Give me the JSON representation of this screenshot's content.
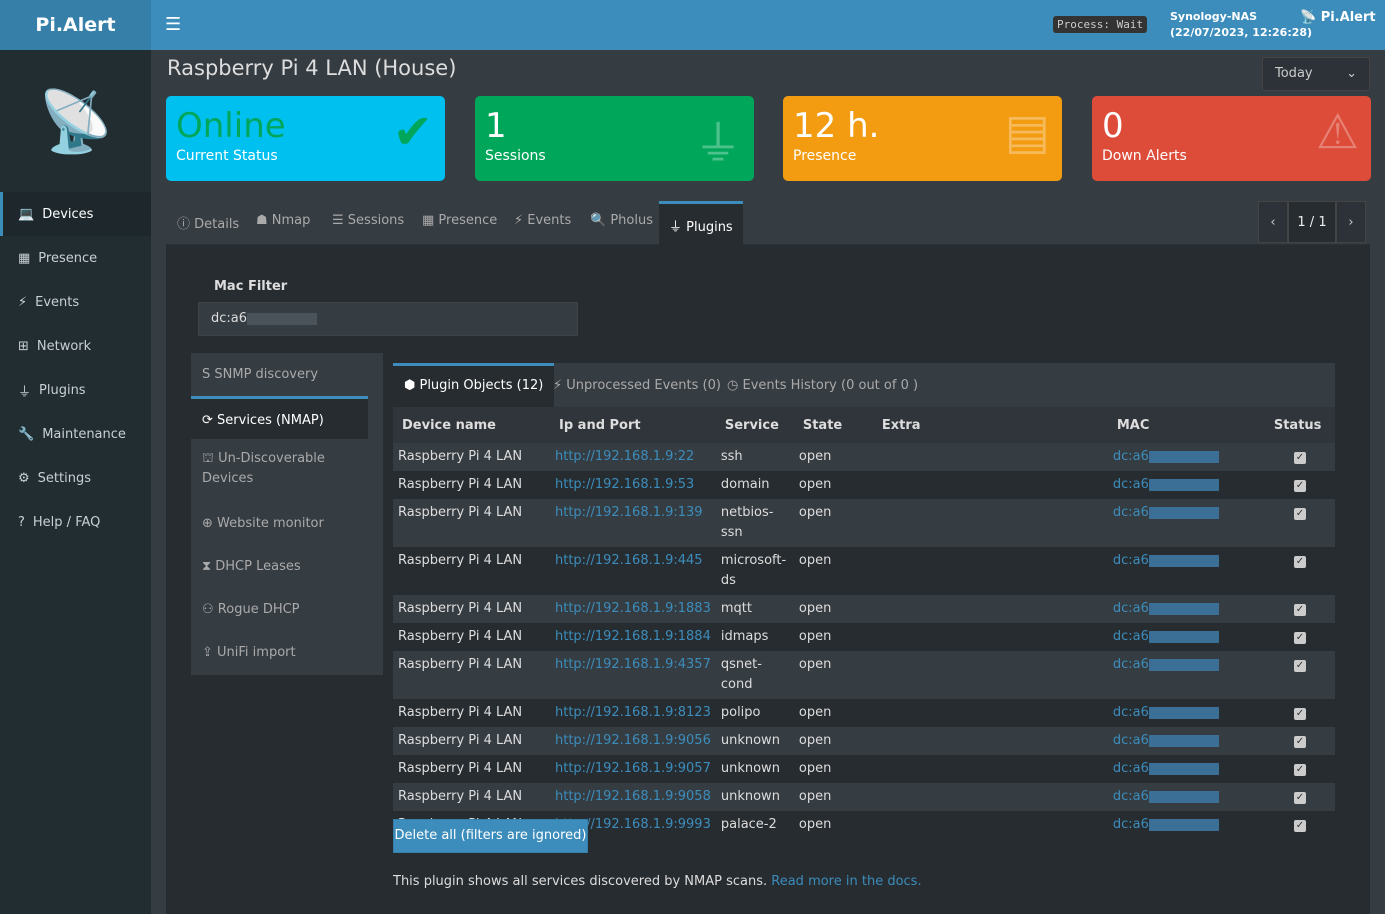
{
  "app": {
    "logo": "Pi.Alert",
    "process": "Process: Wait",
    "host": "Synology-NAS",
    "datetime": "(22/07/2023, 12:26:28)",
    "user": "Pi.Alert"
  },
  "sidebar": {
    "items": [
      {
        "label": "Devices",
        "icon": "laptop-icon"
      },
      {
        "label": "Presence",
        "icon": "calendar-icon"
      },
      {
        "label": "Events",
        "icon": "bolt-icon"
      },
      {
        "label": "Network",
        "icon": "network-icon"
      },
      {
        "label": "Plugins",
        "icon": "plug-icon"
      },
      {
        "label": "Maintenance",
        "icon": "wrench-icon"
      },
      {
        "label": "Settings",
        "icon": "gear-icon"
      },
      {
        "label": "Help / FAQ",
        "icon": "question-icon"
      }
    ]
  },
  "page": {
    "title": "Raspberry Pi 4 LAN (House)",
    "period": "Today"
  },
  "cards": [
    {
      "value": "Online",
      "label": "Current Status",
      "color": "#00c0ef"
    },
    {
      "value": "1",
      "label": "Sessions",
      "color": "#00a65a"
    },
    {
      "value": "12 h.",
      "label": "Presence",
      "color": "#f39c12"
    },
    {
      "value": "0",
      "label": "Down Alerts",
      "color": "#dd4b39"
    }
  ],
  "tabs": [
    "Details",
    "Nmap",
    "Sessions",
    "Presence",
    "Events",
    "Pholus",
    "Plugins"
  ],
  "pager": "1 / 1",
  "mac_filter": {
    "label": "Mac Filter",
    "value": "dc:a6"
  },
  "plugins": [
    "SNMP discovery",
    "Services (NMAP)",
    "Un-Discoverable Devices",
    "Website monitor",
    "DHCP Leases",
    "Rogue DHCP",
    "UniFi import"
  ],
  "subtabs": [
    "Plugin Objects (12)",
    "Unprocessed Events (0)",
    "Events History (0 out of 0 )"
  ],
  "table": {
    "headers": [
      "Device name",
      "Ip and Port",
      "Service",
      "State",
      "Extra",
      "MAC",
      "Status"
    ],
    "rows": [
      [
        "Raspberry Pi 4 LAN",
        "http://192.168.1.9:22",
        "ssh",
        "open"
      ],
      [
        "Raspberry Pi 4 LAN",
        "http://192.168.1.9:53",
        "domain",
        "open"
      ],
      [
        "Raspberry Pi 4 LAN",
        "http://192.168.1.9:139",
        "netbios-ssn",
        "open"
      ],
      [
        "Raspberry Pi 4 LAN",
        "http://192.168.1.9:445",
        "microsoft-ds",
        "open"
      ],
      [
        "Raspberry Pi 4 LAN",
        "http://192.168.1.9:1883",
        "mqtt",
        "open"
      ],
      [
        "Raspberry Pi 4 LAN",
        "http://192.168.1.9:1884",
        "idmaps",
        "open"
      ],
      [
        "Raspberry Pi 4 LAN",
        "http://192.168.1.9:4357",
        "qsnet-cond",
        "open"
      ],
      [
        "Raspberry Pi 4 LAN",
        "http://192.168.1.9:8123",
        "polipo",
        "open"
      ],
      [
        "Raspberry Pi 4 LAN",
        "http://192.168.1.9:9056",
        "unknown",
        "open"
      ],
      [
        "Raspberry Pi 4 LAN",
        "http://192.168.1.9:9057",
        "unknown",
        "open"
      ],
      [
        "Raspberry Pi 4 LAN",
        "http://192.168.1.9:9058",
        "unknown",
        "open"
      ],
      [
        "Raspberry Pi 4 LAN",
        "http://192.168.1.9:9993",
        "palace-2",
        "open"
      ]
    ],
    "mac": "dc:a6"
  },
  "delete_label": "Delete all (filters are ignored)",
  "note": {
    "text": "This plugin shows all services discovered by NMAP scans.",
    "link": "Read more in the docs."
  }
}
